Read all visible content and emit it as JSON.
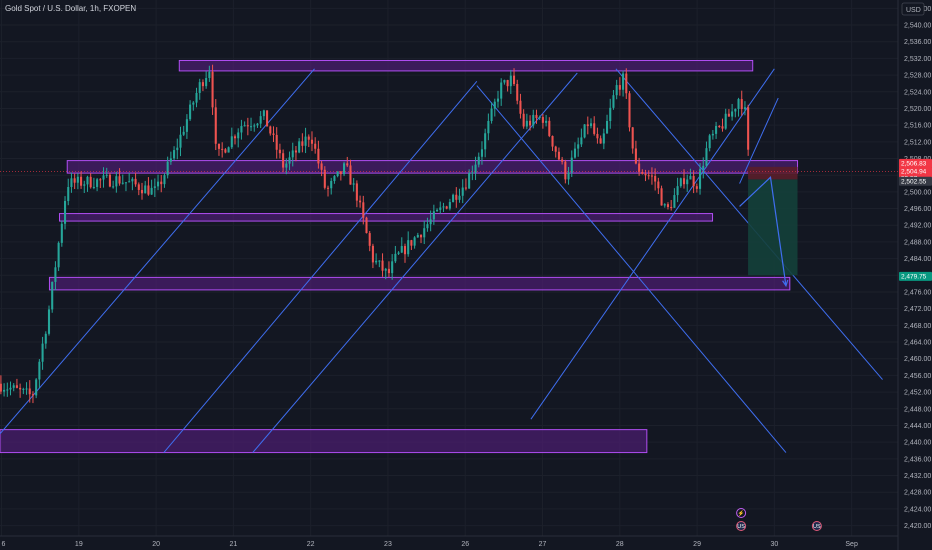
{
  "header": {
    "title": "Gold Spot / U.S. Dollar, 1h, FXOPEN",
    "currency": "USD"
  },
  "colors": {
    "background": "#131722",
    "up": "#26a69a",
    "down": "#ef5350",
    "zone_fill": "#4a1e6e",
    "zone_stroke": "#b04df2",
    "channel": "#3f6ef0",
    "target_fill": "#14403a",
    "stop_fill": "#5a1e2a"
  },
  "chart_data": {
    "type": "candlestick",
    "title": "Gold Spot / U.S. Dollar, 1h, FXOPEN",
    "symbol": "XAUUSD",
    "timeframe": "1h",
    "yaxis": {
      "ticks": [
        "2,544.00",
        "2,540.00",
        "2,536.00",
        "2,532.00",
        "2,528.00",
        "2,524.00",
        "2,520.00",
        "2,516.00",
        "2,512.00",
        "2,508.00",
        "2,504.00",
        "2,500.00",
        "2,496.00",
        "2,492.00",
        "2,488.00",
        "2,484.00",
        "2,480.00",
        "2,476.00",
        "2,472.00",
        "2,468.00",
        "2,464.00",
        "2,460.00",
        "2,456.00",
        "2,452.00",
        "2,448.00",
        "2,444.00",
        "2,440.00",
        "2,436.00",
        "2,432.00",
        "2,428.00",
        "2,424.00",
        "2,420.00"
      ],
      "ylim": [
        2417.5,
        2546
      ]
    },
    "xaxis": {
      "labels": [
        {
          "t": 0,
          "label": "6"
        },
        {
          "t": 1,
          "label": "19"
        },
        {
          "t": 2,
          "label": "20"
        },
        {
          "t": 3,
          "label": "21"
        },
        {
          "t": 4,
          "label": "22"
        },
        {
          "t": 5,
          "label": "23"
        },
        {
          "t": 6,
          "label": "26"
        },
        {
          "t": 7,
          "label": "27"
        },
        {
          "t": 8,
          "label": "28"
        },
        {
          "t": 9,
          "label": "29"
        },
        {
          "t": 10,
          "label": "30"
        },
        {
          "t": 11,
          "label": "Sep"
        }
      ],
      "xlim": [
        -0.02,
        11.6
      ]
    },
    "price_tags": [
      {
        "text": "2,506.83",
        "value": 2506.83,
        "color": "#f23645"
      },
      {
        "text": "2,504.94",
        "sub": "55:57",
        "value": 2504.94,
        "color": "#f23645"
      },
      {
        "text": "2,502.55",
        "value": 2502.55,
        "color": "#363a45"
      },
      {
        "text": "2,479.75",
        "value": 2479.75,
        "color": "#089981"
      }
    ],
    "key_points": [
      [
        -0.05,
        2454
      ],
      [
        0.4,
        2451
      ],
      [
        0.6,
        2470
      ],
      [
        0.85,
        2502
      ],
      [
        1.5,
        2503
      ],
      [
        2.0,
        2500
      ],
      [
        2.25,
        2510
      ],
      [
        2.55,
        2525
      ],
      [
        2.7,
        2530
      ],
      [
        2.78,
        2508
      ],
      [
        3.1,
        2516
      ],
      [
        3.4,
        2518
      ],
      [
        3.65,
        2506
      ],
      [
        4.0,
        2514
      ],
      [
        4.2,
        2500
      ],
      [
        4.45,
        2506
      ],
      [
        4.6,
        2499
      ],
      [
        4.8,
        2484
      ],
      [
        5.0,
        2480
      ],
      [
        5.1,
        2484
      ],
      [
        5.5,
        2492
      ],
      [
        5.8,
        2498
      ],
      [
        6.0,
        2502
      ],
      [
        6.2,
        2510
      ],
      [
        6.45,
        2525
      ],
      [
        6.6,
        2527
      ],
      [
        6.75,
        2516
      ],
      [
        7.0,
        2518
      ],
      [
        7.3,
        2504
      ],
      [
        7.6,
        2517
      ],
      [
        7.75,
        2510
      ],
      [
        7.95,
        2525
      ],
      [
        8.05,
        2527
      ],
      [
        8.2,
        2506
      ],
      [
        8.45,
        2503
      ],
      [
        8.6,
        2495
      ],
      [
        8.85,
        2504
      ],
      [
        9.0,
        2502
      ],
      [
        9.15,
        2512
      ],
      [
        9.45,
        2519
      ],
      [
        9.55,
        2523
      ],
      [
        9.62,
        2519
      ],
      [
        9.68,
        2506
      ]
    ],
    "zones": [
      {
        "name": "top-zone",
        "x1": 2.3,
        "x2": 9.72,
        "y_top": 2531.5,
        "y_bottom": 2529.0
      },
      {
        "name": "mid-zone",
        "x1": 0.85,
        "x2": 10.3,
        "y_top": 2507.5,
        "y_bottom": 2504.5
      },
      {
        "name": "lower-zone",
        "x1": 0.75,
        "x2": 9.2,
        "y_top": 2494.8,
        "y_bottom": 2493.0
      },
      {
        "name": "support-zone",
        "x1": 0.62,
        "x2": 10.2,
        "y_top": 2479.5,
        "y_bottom": 2476.5
      },
      {
        "name": "bottom-zone",
        "x1": -0.02,
        "x2": 8.35,
        "y_top": 2443.0,
        "y_bottom": 2437.5
      }
    ],
    "channel_lines": [
      [
        -0.02,
        2442.0,
        4.05,
        2529.5
      ],
      [
        2.1,
        2437.5,
        6.15,
        2526.5
      ],
      [
        3.25,
        2437.5,
        7.45,
        2528.5
      ],
      [
        6.85,
        2445.5,
        10.0,
        2529.5
      ],
      [
        6.15,
        2525.5,
        10.15,
        2437.5
      ],
      [
        7.95,
        2529.5,
        11.4,
        2455.0
      ],
      [
        9.55,
        2502.0,
        10.05,
        2522.5
      ]
    ],
    "projection": [
      [
        9.55,
        2496.5
      ],
      [
        9.95,
        2503.5
      ],
      [
        10.15,
        2477.5
      ]
    ],
    "position": {
      "entry": 2503.0,
      "stop": 2506.0,
      "target": 2480.0,
      "x1": 9.66,
      "x2": 10.3
    },
    "event_markers": [
      {
        "x": 9.57,
        "label": "⚡"
      },
      {
        "x": 9.57,
        "label": "US"
      },
      {
        "x": 10.55,
        "label": "US"
      }
    ]
  }
}
